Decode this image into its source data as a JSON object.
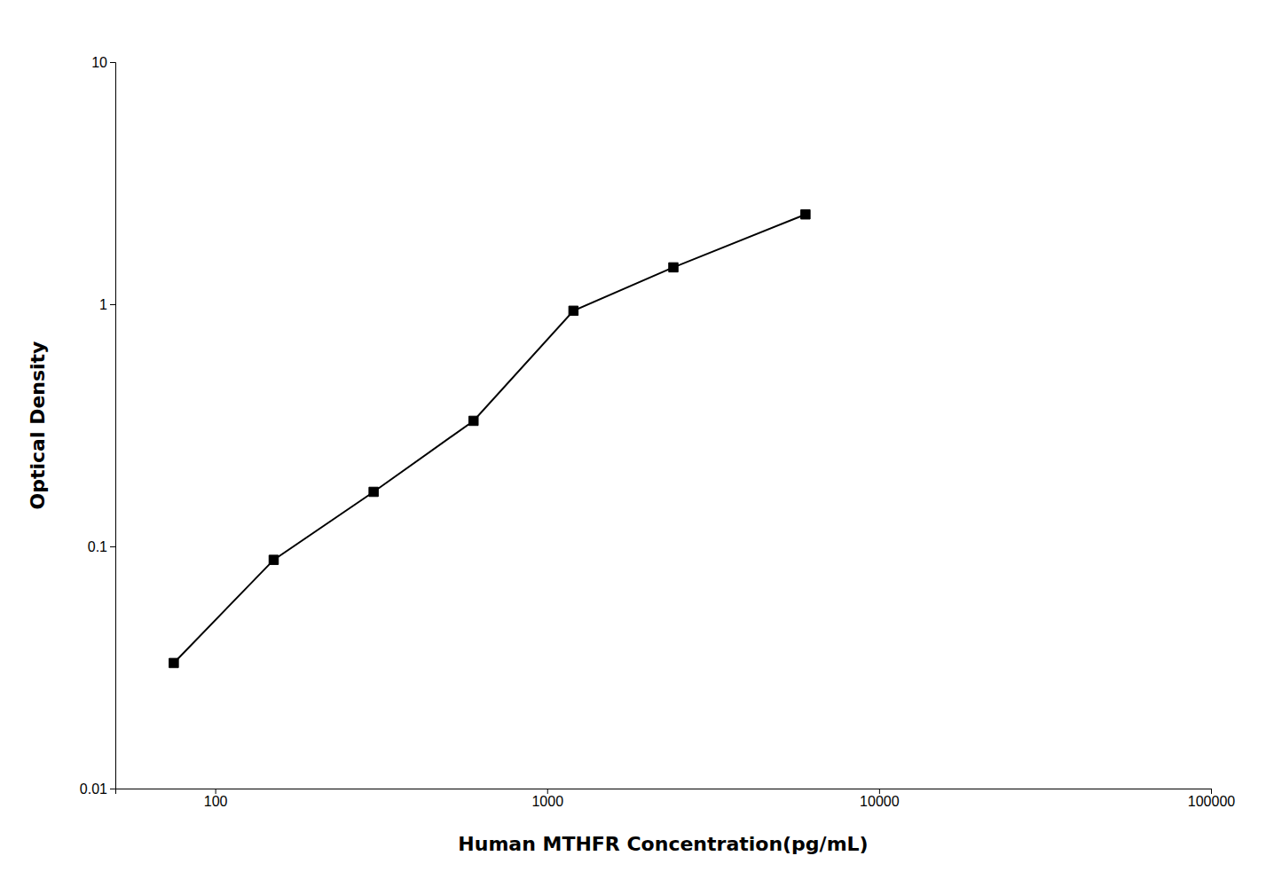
{
  "chart_data": {
    "type": "line",
    "xlabel": "Human MTHFR Concentration(pg/mL)",
    "ylabel": "Optical Density",
    "x": [
      75,
      150,
      300,
      600,
      1200,
      2400,
      6000
    ],
    "values": [
      0.033,
      0.088,
      0.168,
      0.33,
      0.94,
      1.42,
      2.35
    ],
    "color": "#000000",
    "marker": "square",
    "log": true,
    "grid": false,
    "xlim": [
      50,
      100000
    ],
    "ylim": [
      0.01,
      10
    ],
    "xticks": [
      100,
      1000,
      10000,
      100000
    ],
    "yticks": [
      0.01,
      0.1,
      1,
      10
    ]
  }
}
